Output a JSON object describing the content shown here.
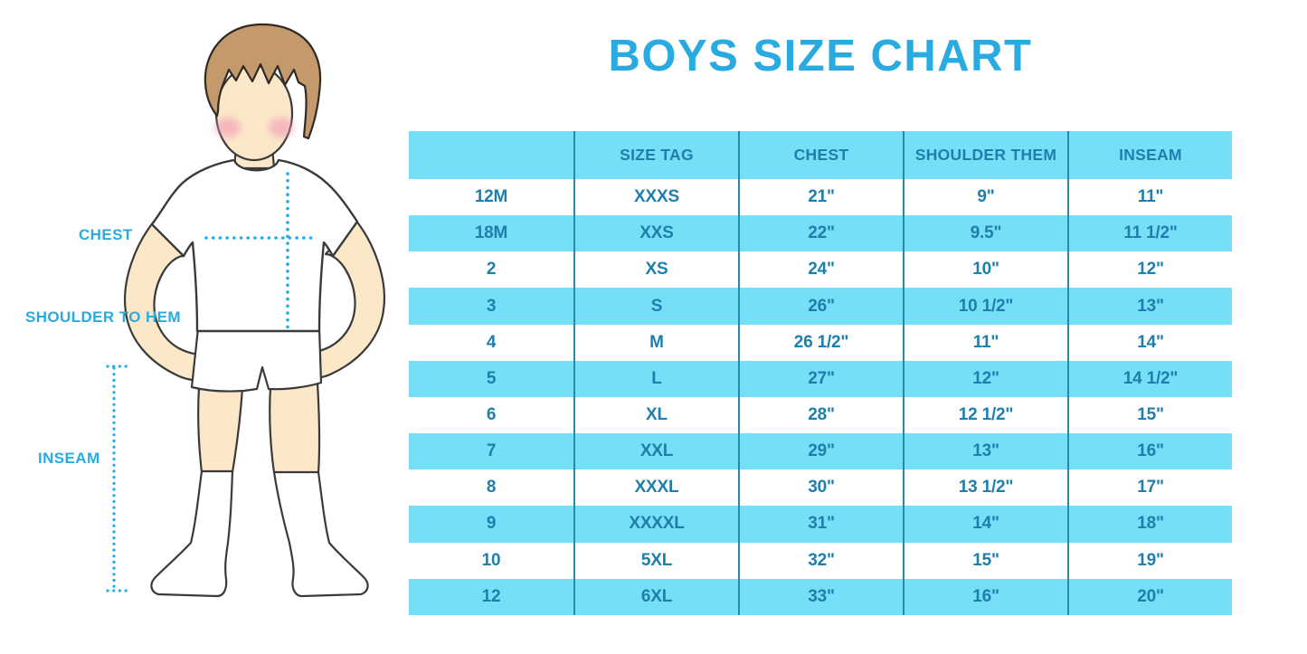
{
  "title": "BOYS SIZE CHART",
  "figure": {
    "name": "boy-measurement-illustration",
    "labels": {
      "chest": "CHEST",
      "shoulder_to_hem": "SHOULDER TO HEM",
      "inseam": "INSEAM"
    }
  },
  "colors": {
    "accent_blue": "#29ABE2",
    "row_band_blue": "#74DFF7",
    "table_text_blue": "#1E7FAC",
    "separator_blue": "#2B86AE"
  },
  "chart_data": {
    "type": "table",
    "title": "BOYS SIZE CHART",
    "columns": [
      "",
      "SIZE TAG",
      "CHEST",
      "SHOULDER THEM",
      "INSEAM"
    ],
    "rows": [
      [
        "12M",
        "XXXS",
        "21\"",
        "9\"",
        "11\""
      ],
      [
        "18M",
        "XXS",
        "22\"",
        "9.5\"",
        "11 1/2\""
      ],
      [
        "2",
        "XS",
        "24\"",
        "10\"",
        "12\""
      ],
      [
        "3",
        "S",
        "26\"",
        "10 1/2\"",
        "13\""
      ],
      [
        "4",
        "M",
        "26 1/2\"",
        "11\"",
        "14\""
      ],
      [
        "5",
        "L",
        "27\"",
        "12\"",
        "14 1/2\""
      ],
      [
        "6",
        "XL",
        "28\"",
        "12 1/2\"",
        "15\""
      ],
      [
        "7",
        "XXL",
        "29\"",
        "13\"",
        "16\""
      ],
      [
        "8",
        "XXXL",
        "30\"",
        "13 1/2\"",
        "17\""
      ],
      [
        "9",
        "XXXXL",
        "31\"",
        "14\"",
        "18\""
      ],
      [
        "10",
        "5XL",
        "32\"",
        "15\"",
        "19\""
      ],
      [
        "12",
        "6XL",
        "33\"",
        "16\"",
        "20\""
      ]
    ],
    "layout": {
      "banding": "alternating white / light-blue rows, header light-blue",
      "column_separators": true,
      "row_separators": false
    }
  }
}
